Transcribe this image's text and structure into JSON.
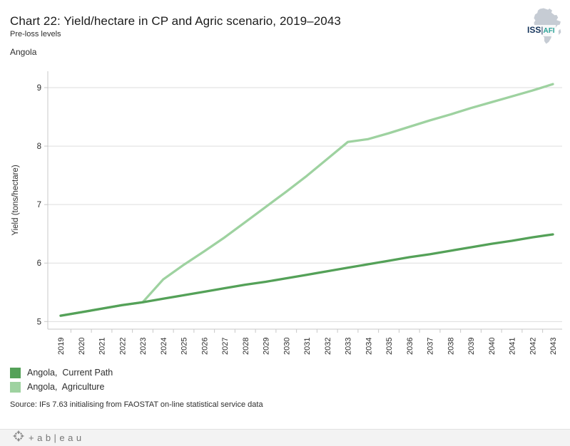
{
  "header": {
    "title": "Chart 22: Yield/hectare in CP and Agric scenario, 2019–2043",
    "subtitle": "Pre-loss levels",
    "region_label": "Angola"
  },
  "logo": {
    "org": "ISS",
    "separator": "|",
    "program": "AFI"
  },
  "chart_data": {
    "type": "line",
    "title": "Chart 22: Yield/hectare in CP and Agric scenario, 2019–2043",
    "xlabel": "",
    "ylabel": "Yield (tons/hectare)",
    "x": [
      2019,
      2020,
      2021,
      2022,
      2023,
      2024,
      2025,
      2026,
      2027,
      2028,
      2029,
      2030,
      2031,
      2032,
      2033,
      2034,
      2035,
      2036,
      2037,
      2038,
      2039,
      2040,
      2041,
      2042,
      2043
    ],
    "series": [
      {
        "name": "Angola,  Current Path",
        "color": "#54a158",
        "values": [
          5.1,
          5.16,
          5.22,
          5.28,
          5.33,
          5.39,
          5.45,
          5.51,
          5.57,
          5.63,
          5.68,
          5.74,
          5.8,
          5.86,
          5.92,
          5.98,
          6.04,
          6.1,
          6.15,
          6.21,
          6.27,
          6.33,
          6.38,
          6.44,
          6.49
        ]
      },
      {
        "name": "Angola,  Agriculture",
        "color": "#9ed2a0",
        "values": [
          5.1,
          5.16,
          5.22,
          5.28,
          5.33,
          5.72,
          5.97,
          6.2,
          6.44,
          6.7,
          6.96,
          7.22,
          7.49,
          7.78,
          8.07,
          8.12,
          8.22,
          8.33,
          8.44,
          8.54,
          8.65,
          8.75,
          8.85,
          8.95,
          9.06
        ]
      }
    ],
    "yticks": [
      5,
      6,
      7,
      8,
      9
    ],
    "ylim": [
      4.87,
      9.28
    ],
    "grid": "horizontal",
    "legend_position": "bottom-left"
  },
  "source": "Source: IFs 7.63 initialising from FAOSTAT on-line statistical service data",
  "footer": {
    "brand_wordmark": "+ab|eau"
  }
}
